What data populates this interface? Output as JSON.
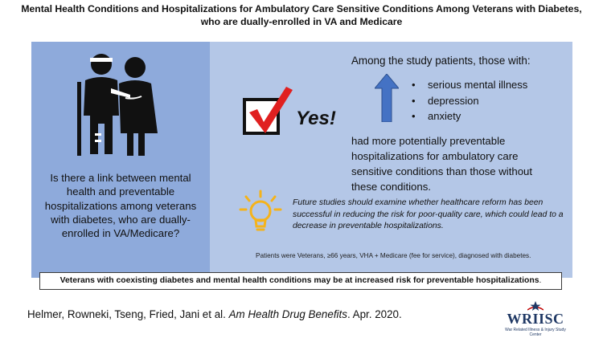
{
  "title": {
    "line1": "Mental Health Conditions and Hospitalizations for Ambulatory Care Sensitive Conditions Among Veterans with Diabetes,",
    "line2": "who are dually-enrolled in VA and Medicare"
  },
  "left_panel": {
    "icon": "injured-veteran-with-helper-icon",
    "question": "Is there a link between mental health and preventable hospitalizations among veterans with diabetes, who are dually-enrolled in VA/Medicare?"
  },
  "answer": {
    "icon": "checkmark-box-icon",
    "text": "Yes!"
  },
  "findings": {
    "intro": "Among the study patients, those with:",
    "arrow_icon": "up-arrow-icon",
    "conditions": [
      "serious mental illness",
      "depression",
      "anxiety"
    ],
    "result": "had more potentially preventable hospitalizations for ambulatory care sensitive conditions than those without these conditions."
  },
  "future": {
    "icon": "lightbulb-icon",
    "text": "Future studies should examine whether healthcare reform has been successful in reducing the risk for poor-quality care, which could lead to a decrease in preventable hospitalizations."
  },
  "criteria": "Patients were Veterans, ≥66 years, VHA + Medicare (fee for service), diagnosed with diabetes.",
  "banner": {
    "text": "Veterans with coexisting diabetes and mental health conditions may be at increased risk for preventable hospitalizations",
    "end": "."
  },
  "citation": {
    "authors": "Helmer, Rowneki, Tseng, Fried, Jani et al. ",
    "journal": "Am Health Drug Benefits",
    "date": ". Apr. 2020."
  },
  "logo": {
    "word": "WRIISC",
    "sub": "War Related Illness & Injury Study Center"
  },
  "colors": {
    "left_panel": "#8eaadb",
    "right_panel": "#b4c7e7",
    "check_red": "#e02020",
    "arrow_blue": "#4472c4",
    "bulb_gold": "#f5b31a",
    "logo_navy": "#1f3864"
  }
}
